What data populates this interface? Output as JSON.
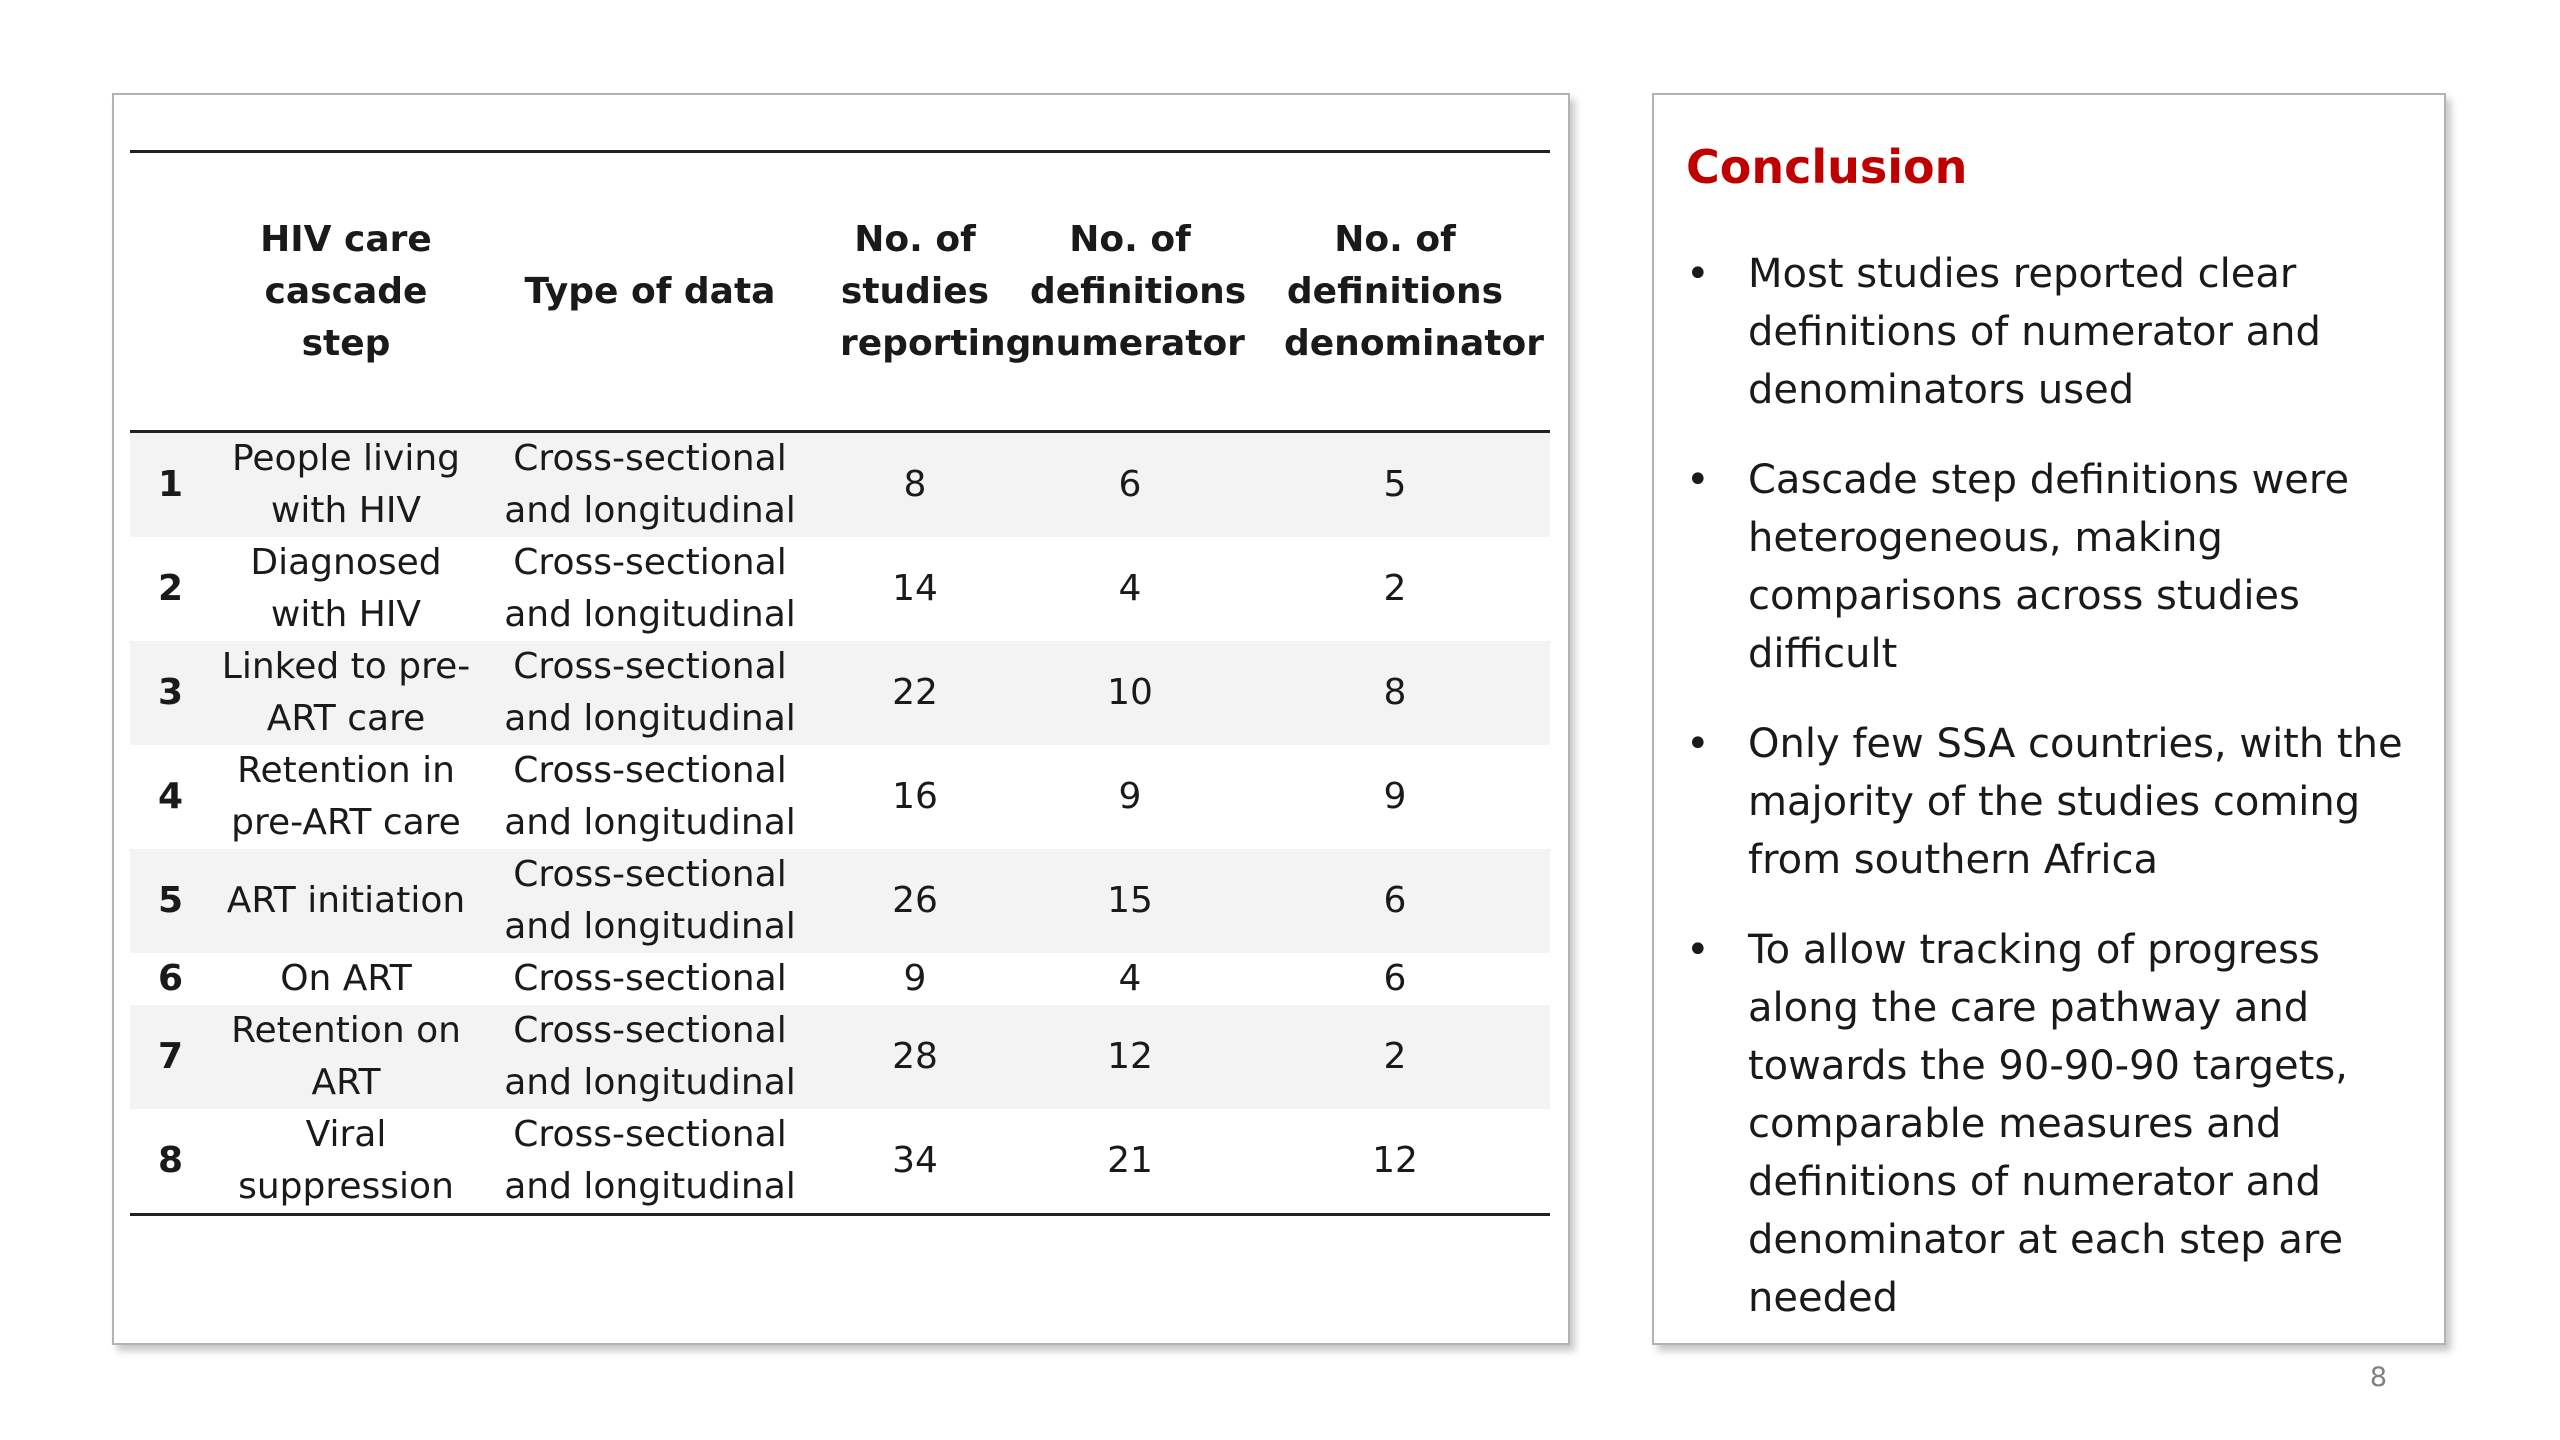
{
  "table": {
    "headers": {
      "num": "",
      "step": "HIV care cascade step",
      "type": "Type of data",
      "studies": "No. of studies reporting",
      "numerator": "No. of definitions numerator",
      "denominator": "No. of definitions denominator"
    },
    "rows": [
      {
        "num": "1",
        "step": "People living with HIV",
        "type": "Cross-sectional and longitudinal",
        "studies": "8",
        "numerator": "6",
        "denominator": "5"
      },
      {
        "num": "2",
        "step": "Diagnosed with HIV",
        "type": "Cross-sectional and longitudinal",
        "studies": "14",
        "numerator": "4",
        "denominator": "2"
      },
      {
        "num": "3",
        "step": "Linked to pre-ART care",
        "type": "Cross-sectional and longitudinal",
        "studies": "22",
        "numerator": "10",
        "denominator": "8"
      },
      {
        "num": "4",
        "step": "Retention in pre-ART care",
        "type": "Cross-sectional and longitudinal",
        "studies": "16",
        "numerator": "9",
        "denominator": "9"
      },
      {
        "num": "5",
        "step": "ART initiation",
        "type": "Cross-sectional and longitudinal",
        "studies": "26",
        "numerator": "15",
        "denominator": "6"
      },
      {
        "num": "6",
        "step": "On ART",
        "type": "Cross-sectional",
        "studies": "9",
        "numerator": "4",
        "denominator": "6"
      },
      {
        "num": "7",
        "step": "Retention on ART",
        "type": "Cross-sectional and longitudinal",
        "studies": "28",
        "numerator": "12",
        "denominator": "2"
      },
      {
        "num": "8",
        "step": "Viral suppression",
        "type": "Cross-sectional and longitudinal",
        "studies": "34",
        "numerator": "21",
        "denominator": "12"
      }
    ]
  },
  "conclusion": {
    "title": "Conclusion",
    "title_color": "#c00000",
    "bullet_symbol": "•",
    "bullets": [
      "Most studies reported clear definitions of numerator and denominators used",
      "Cascade step definitions were heterogeneous, making comparisons across studies difficult",
      "Only few SSA countries, with the majority of the studies coming from southern Africa",
      "To allow tracking of progress along the care pathway and towards the 90-90-90 targets, comparable measures and definitions of numerator and denominator at each step are needed"
    ]
  },
  "page_number": "8"
}
